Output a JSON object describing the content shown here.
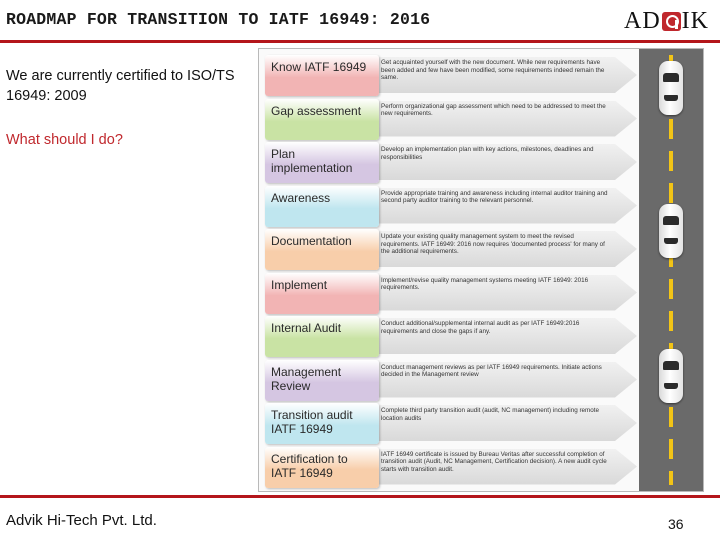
{
  "header": {
    "title": "ROADMAP FOR TRANSITION TO IATF 16949: 2016",
    "logo_left": "AD",
    "logo_right": "IK"
  },
  "intro": {
    "status": "We are currently certified to ISO/TS 16949: 2009",
    "question": "What should I do?"
  },
  "footer": {
    "company": "Advik Hi-Tech Pvt. Ltd.",
    "page_number": "36"
  },
  "roadmap": {
    "steps": [
      {
        "label": "Know IATF 16949",
        "description": "Get acquainted yourself with the new document. While new requirements have been added and few have been modified, some requirements indeed remain the same.",
        "color": "#f2b4b4"
      },
      {
        "label": "Gap assessment",
        "description": "Perform organizational gap assessment which need to be addressed to meet the new requirements.",
        "color": "#c9e3a4"
      },
      {
        "label": "Plan implementation",
        "description": "Develop an implementation plan with key actions, milestones, deadlines and responsibilities",
        "color": "#d5c6e2"
      },
      {
        "label": "Awareness",
        "description": "Provide appropriate training and awareness including internal auditor training and second party auditor training to the relevant personnel.",
        "color": "#bfe6ef"
      },
      {
        "label": "Documentation",
        "description": "Update your existing quality management system to meet the revised requirements. IATF 16949: 2016 now requires 'documented process' for many of the additional requirements.",
        "color": "#f8ceaa"
      },
      {
        "label": "Implement",
        "description": "Implement/revise quality management systems meeting IATF 16949: 2016 requirements.",
        "color": "#f2b4b4"
      },
      {
        "label": "Internal Audit",
        "description": "Conduct additional/supplemental internal audit as per IATF 16949:2016 requirements and close the gaps if any.",
        "color": "#c9e3a4"
      },
      {
        "label": "Management Review",
        "description": "Conduct management reviews as per IATF 16949 requirements. Initiate actions decided in the Management review",
        "color": "#d5c6e2"
      },
      {
        "label": "Transition audit IATF 16949",
        "description": "Complete third party transition audit (audit, NC management) including remote location audits",
        "color": "#bfe6ef"
      },
      {
        "label": "Certification to IATF 16949",
        "description": "IATF 16949 certificate is issued by Bureau Veritas after successful completion of transition audit (Audit, NC Management, Certification decision). A new audit cycle starts with transition audit.",
        "color": "#f8ceaa"
      }
    ]
  }
}
